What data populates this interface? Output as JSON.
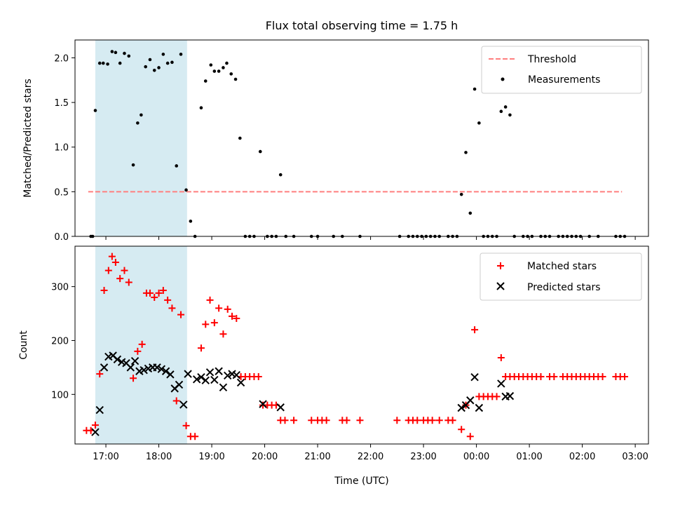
{
  "chart_data": [
    {
      "type": "scatter",
      "title": "Flux total observing time = 1.75 h",
      "ylabel": "Matched/Predicted stars",
      "xlabel": "",
      "ylim": [
        0,
        2.2
      ],
      "yticks": [
        0.0,
        0.5,
        1.0,
        1.5,
        2.0
      ],
      "ytick_labels": [
        "0.0",
        "0.5",
        "1.0",
        "1.5",
        "2.0"
      ],
      "xlim": [
        "16:25",
        "03:15"
      ],
      "xticks": [
        "17:00",
        "18:00",
        "19:00",
        "20:00",
        "21:00",
        "22:00",
        "23:00",
        "00:00",
        "01:00",
        "02:00",
        "03:00"
      ],
      "shaded_interval": [
        "16:48",
        "18:32"
      ],
      "shade_color": "#add8e6",
      "legend_position": "top-right",
      "threshold": {
        "name": "Threshold",
        "value": 0.5,
        "x_range": [
          "16:40",
          "02:45"
        ],
        "color": "#ff7f7f",
        "style": "dashed"
      },
      "series": [
        {
          "name": "Measurements",
          "color": "#000000",
          "marker": "dot",
          "points": [
            [
              "16:43",
              0
            ],
            [
              "16:45",
              0
            ],
            [
              "16:48",
              1.41
            ],
            [
              "16:53",
              1.94
            ],
            [
              "16:57",
              1.94
            ],
            [
              "17:02",
              1.93
            ],
            [
              "17:07",
              2.07
            ],
            [
              "17:11",
              2.06
            ],
            [
              "17:16",
              1.94
            ],
            [
              "17:21",
              2.05
            ],
            [
              "17:26",
              2.02
            ],
            [
              "17:31",
              0.8
            ],
            [
              "17:36",
              1.27
            ],
            [
              "17:40",
              1.36
            ],
            [
              "17:45",
              1.9
            ],
            [
              "17:50",
              1.98
            ],
            [
              "17:55",
              1.86
            ],
            [
              "18:00",
              1.89
            ],
            [
              "18:05",
              2.04
            ],
            [
              "18:10",
              1.94
            ],
            [
              "18:15",
              1.95
            ],
            [
              "18:20",
              0.79
            ],
            [
              "18:25",
              2.04
            ],
            [
              "18:31",
              0.52
            ],
            [
              "18:36",
              0.17
            ],
            [
              "18:41",
              0
            ],
            [
              "18:48",
              1.44
            ],
            [
              "18:53",
              1.74
            ],
            [
              "18:59",
              1.92
            ],
            [
              "19:03",
              1.85
            ],
            [
              "19:08",
              1.85
            ],
            [
              "19:13",
              1.89
            ],
            [
              "19:17",
              1.94
            ],
            [
              "19:22",
              1.82
            ],
            [
              "19:27",
              1.76
            ],
            [
              "19:32",
              1.1
            ],
            [
              "19:38",
              0
            ],
            [
              "19:43",
              0
            ],
            [
              "19:48",
              0
            ],
            [
              "19:55",
              0.95
            ],
            [
              "20:03",
              0
            ],
            [
              "20:08",
              0
            ],
            [
              "20:13",
              0
            ],
            [
              "20:18",
              0.69
            ],
            [
              "20:24",
              0
            ],
            [
              "20:33",
              0
            ],
            [
              "20:53",
              0
            ],
            [
              "21:00",
              0
            ],
            [
              "21:18",
              0
            ],
            [
              "21:28",
              0
            ],
            [
              "21:48",
              0
            ],
            [
              "22:33",
              0
            ],
            [
              "22:43",
              0
            ],
            [
              "22:48",
              0
            ],
            [
              "22:53",
              0
            ],
            [
              "22:58",
              0
            ],
            [
              "23:03",
              0
            ],
            [
              "23:08",
              0
            ],
            [
              "23:13",
              0
            ],
            [
              "23:18",
              0
            ],
            [
              "23:28",
              0
            ],
            [
              "23:33",
              0
            ],
            [
              "23:38",
              0
            ],
            [
              "23:43",
              0.47
            ],
            [
              "23:48",
              0.94
            ],
            [
              "23:53",
              0.26
            ],
            [
              "23:58",
              1.65
            ],
            [
              "00:03",
              1.27
            ],
            [
              "00:08",
              0
            ],
            [
              "00:13",
              0
            ],
            [
              "00:18",
              0
            ],
            [
              "00:23",
              0
            ],
            [
              "00:28",
              1.4
            ],
            [
              "00:33",
              1.45
            ],
            [
              "00:38",
              1.36
            ],
            [
              "00:43",
              0
            ],
            [
              "00:53",
              0
            ],
            [
              "00:58",
              0
            ],
            [
              "01:03",
              0
            ],
            [
              "01:13",
              0
            ],
            [
              "01:18",
              0
            ],
            [
              "01:23",
              0
            ],
            [
              "01:33",
              0
            ],
            [
              "01:38",
              0
            ],
            [
              "01:43",
              0
            ],
            [
              "01:48",
              0
            ],
            [
              "01:53",
              0
            ],
            [
              "01:58",
              0
            ],
            [
              "02:08",
              0
            ],
            [
              "02:18",
              0
            ],
            [
              "02:38",
              0
            ],
            [
              "02:43",
              0
            ],
            [
              "02:48",
              0
            ]
          ]
        }
      ]
    },
    {
      "type": "scatter",
      "title": "",
      "ylabel": "Count",
      "xlabel": "Time (UTC)",
      "ylim": [
        8,
        375
      ],
      "yticks": [
        100,
        200,
        300
      ],
      "ytick_labels": [
        "100",
        "200",
        "300"
      ],
      "xlim": [
        "16:25",
        "03:15"
      ],
      "xticks": [
        "17:00",
        "18:00",
        "19:00",
        "20:00",
        "21:00",
        "22:00",
        "23:00",
        "00:00",
        "01:00",
        "02:00",
        "03:00"
      ],
      "xtick_labels": [
        "17:00",
        "18:00",
        "19:00",
        "20:00",
        "21:00",
        "22:00",
        "23:00",
        "00:00",
        "01:00",
        "02:00",
        "03:00"
      ],
      "shaded_interval": [
        "16:48",
        "18:32"
      ],
      "shade_color": "#add8e6",
      "legend_position": "top-right",
      "series": [
        {
          "name": "Matched stars",
          "color": "#ff0000",
          "marker": "plus",
          "points": [
            [
              "16:38",
              33
            ],
            [
              "16:43",
              33
            ],
            [
              "16:48",
              43
            ],
            [
              "16:53",
              138
            ],
            [
              "16:58",
              293
            ],
            [
              "17:03",
              330
            ],
            [
              "17:07",
              356
            ],
            [
              "17:11",
              345
            ],
            [
              "17:16",
              315
            ],
            [
              "17:21",
              330
            ],
            [
              "17:26",
              308
            ],
            [
              "17:31",
              130
            ],
            [
              "17:36",
              180
            ],
            [
              "17:41",
              193
            ],
            [
              "17:46",
              288
            ],
            [
              "17:50",
              288
            ],
            [
              "17:55",
              280
            ],
            [
              "18:00",
              288
            ],
            [
              "18:05",
              293
            ],
            [
              "18:10",
              275
            ],
            [
              "18:15",
              260
            ],
            [
              "18:20",
              88
            ],
            [
              "18:25",
              248
            ],
            [
              "18:31",
              42
            ],
            [
              "18:36",
              22
            ],
            [
              "18:41",
              22
            ],
            [
              "18:48",
              186
            ],
            [
              "18:53",
              230
            ],
            [
              "18:58",
              275
            ],
            [
              "19:03",
              233
            ],
            [
              "19:08",
              260
            ],
            [
              "19:13",
              212
            ],
            [
              "19:18",
              258
            ],
            [
              "19:23",
              245
            ],
            [
              "19:28",
              241
            ],
            [
              "19:33",
              133
            ],
            [
              "19:38",
              133
            ],
            [
              "19:43",
              133
            ],
            [
              "19:48",
              133
            ],
            [
              "19:53",
              133
            ],
            [
              "19:58",
              80
            ],
            [
              "20:03",
              80
            ],
            [
              "20:08",
              80
            ],
            [
              "20:13",
              80
            ],
            [
              "20:18",
              52
            ],
            [
              "20:23",
              52
            ],
            [
              "20:33",
              52
            ],
            [
              "20:53",
              52
            ],
            [
              "21:00",
              52
            ],
            [
              "21:05",
              52
            ],
            [
              "21:10",
              52
            ],
            [
              "21:28",
              52
            ],
            [
              "21:33",
              52
            ],
            [
              "21:48",
              52
            ],
            [
              "22:30",
              52
            ],
            [
              "22:43",
              52
            ],
            [
              "22:48",
              52
            ],
            [
              "22:53",
              52
            ],
            [
              "23:00",
              52
            ],
            [
              "23:05",
              52
            ],
            [
              "23:10",
              52
            ],
            [
              "23:18",
              52
            ],
            [
              "23:28",
              52
            ],
            [
              "23:33",
              52
            ],
            [
              "23:43",
              35
            ],
            [
              "23:48",
              80
            ],
            [
              "23:53",
              22
            ],
            [
              "23:58",
              220
            ],
            [
              "00:03",
              96
            ],
            [
              "00:08",
              96
            ],
            [
              "00:13",
              96
            ],
            [
              "00:18",
              96
            ],
            [
              "00:23",
              96
            ],
            [
              "00:28",
              168
            ],
            [
              "00:33",
              133
            ],
            [
              "00:38",
              133
            ],
            [
              "00:43",
              133
            ],
            [
              "00:48",
              133
            ],
            [
              "00:53",
              133
            ],
            [
              "00:58",
              133
            ],
            [
              "01:03",
              133
            ],
            [
              "01:08",
              133
            ],
            [
              "01:13",
              133
            ],
            [
              "01:23",
              133
            ],
            [
              "01:28",
              133
            ],
            [
              "01:38",
              133
            ],
            [
              "01:43",
              133
            ],
            [
              "01:48",
              133
            ],
            [
              "01:53",
              133
            ],
            [
              "01:58",
              133
            ],
            [
              "02:03",
              133
            ],
            [
              "02:08",
              133
            ],
            [
              "02:13",
              133
            ],
            [
              "02:18",
              133
            ],
            [
              "02:23",
              133
            ],
            [
              "02:38",
              133
            ],
            [
              "02:43",
              133
            ],
            [
              "02:48",
              133
            ]
          ]
        },
        {
          "name": "Predicted stars",
          "color": "#000000",
          "marker": "x",
          "points": [
            [
              "16:48",
              30
            ],
            [
              "16:53",
              71
            ],
            [
              "16:58",
              150
            ],
            [
              "17:03",
              170
            ],
            [
              "17:08",
              172
            ],
            [
              "17:13",
              165
            ],
            [
              "17:18",
              160
            ],
            [
              "17:23",
              158
            ],
            [
              "17:28",
              150
            ],
            [
              "17:33",
              162
            ],
            [
              "17:38",
              143
            ],
            [
              "17:43",
              145
            ],
            [
              "17:48",
              148
            ],
            [
              "17:53",
              150
            ],
            [
              "17:58",
              150
            ],
            [
              "18:03",
              147
            ],
            [
              "18:08",
              143
            ],
            [
              "18:13",
              137
            ],
            [
              "18:18",
              111
            ],
            [
              "18:23",
              118
            ],
            [
              "18:28",
              81
            ],
            [
              "18:33",
              138
            ],
            [
              "18:43",
              128
            ],
            [
              "18:48",
              132
            ],
            [
              "18:53",
              126
            ],
            [
              "18:58",
              141
            ],
            [
              "19:03",
              127
            ],
            [
              "19:08",
              143
            ],
            [
              "19:13",
              113
            ],
            [
              "19:18",
              135
            ],
            [
              "19:23",
              138
            ],
            [
              "19:28",
              136
            ],
            [
              "19:33",
              122
            ],
            [
              "19:58",
              82
            ],
            [
              "20:18",
              76
            ],
            [
              "23:43",
              75
            ],
            [
              "23:48",
              80
            ],
            [
              "23:53",
              89
            ],
            [
              "23:58",
              132
            ],
            [
              "00:03",
              75
            ],
            [
              "00:28",
              120
            ],
            [
              "00:33",
              96
            ],
            [
              "00:38",
              97
            ]
          ]
        }
      ]
    }
  ]
}
